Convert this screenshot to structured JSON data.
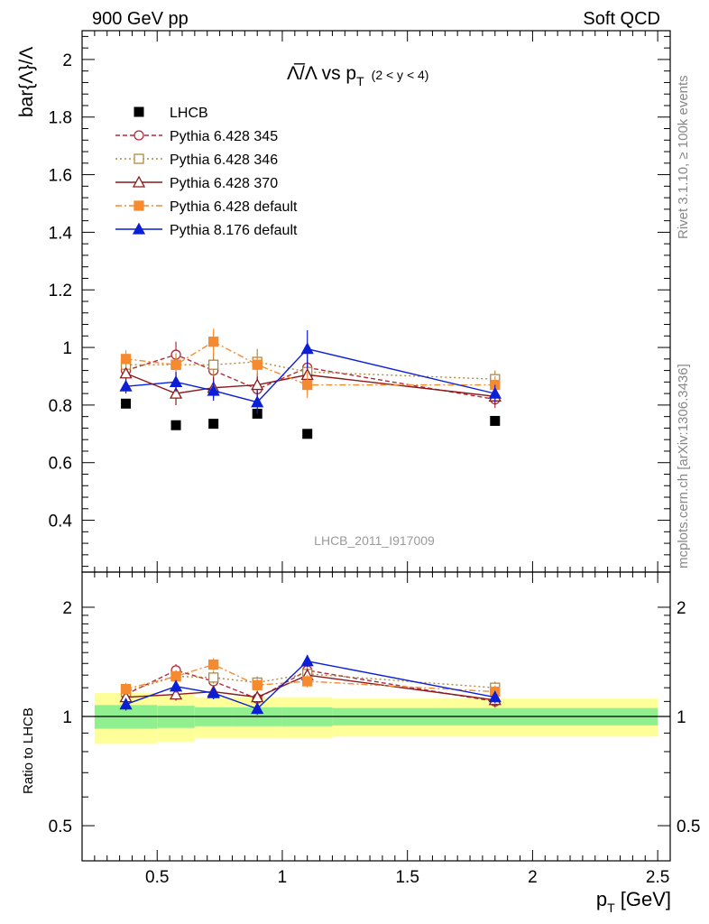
{
  "header": {
    "left": "900 GeV pp",
    "right": "Soft QCD"
  },
  "side_labels": {
    "rivet": "Rivet 3.1.10, ≥ 100k events",
    "mcplots": "mcplots.cern.ch [arXiv:1306.3436]"
  },
  "watermark": "LHCB_2011_I917009",
  "colors": {
    "lhcb": "#000000",
    "p345": "#b22a3a",
    "p346": "#b08a3c",
    "p370": "#8b1a1a",
    "pdef": "#f58a2e",
    "p8": "#0a1fd6",
    "band_inner": "#90f090",
    "band_outer": "#ffff99"
  },
  "chart_data": [
    {
      "type": "scatter",
      "title": {
        "main": "Λ̅/Λ vs p",
        "sub": "T",
        "range": "(2 < y < 4)"
      },
      "xlabel": {
        "main": "p",
        "sub": "T",
        "unit": " [GeV]"
      },
      "ylabel": "bar{Λ}/Λ",
      "xlim": [
        0.2,
        2.55
      ],
      "ylim": [
        0.22,
        2.1
      ],
      "yticks": [
        "0.4",
        "0.6",
        "0.8",
        "1",
        "1.2",
        "1.4",
        "1.6",
        "1.8",
        "2"
      ],
      "xticks": [
        "0.5",
        "1",
        "1.5",
        "2",
        "2.5"
      ],
      "x": [
        0.375,
        0.575,
        0.725,
        0.9,
        1.1,
        1.85
      ],
      "series": [
        {
          "name": "LHCB",
          "style": "data",
          "values": [
            0.805,
            0.73,
            0.735,
            0.77,
            0.7,
            0.745
          ]
        },
        {
          "name": "Pythia 6.428 345",
          "style": "p345",
          "values": [
            0.92,
            0.975,
            0.92,
            0.855,
            0.93,
            0.82
          ],
          "errors": [
            0.03,
            0.045,
            0.04,
            0.04,
            0.055,
            0.03
          ]
        },
        {
          "name": "Pythia 6.428 346",
          "style": "p346",
          "values": [
            0.94,
            0.94,
            0.94,
            0.95,
            0.915,
            0.89
          ],
          "errors": [
            0.03,
            0.04,
            0.04,
            0.045,
            0.05,
            0.03
          ]
        },
        {
          "name": "Pythia 6.428 370",
          "style": "p370",
          "values": [
            0.91,
            0.84,
            0.86,
            0.87,
            0.905,
            0.83
          ],
          "errors": [
            0.03,
            0.04,
            0.035,
            0.04,
            0.05,
            0.03
          ]
        },
        {
          "name": "Pythia 6.428 default",
          "style": "pdef",
          "values": [
            0.96,
            0.94,
            1.02,
            0.94,
            0.87,
            0.87
          ],
          "errors": [
            0.03,
            0.04,
            0.045,
            0.04,
            0.045,
            0.03
          ]
        },
        {
          "name": "Pythia 8.176 default",
          "style": "p8",
          "values": [
            0.865,
            0.88,
            0.85,
            0.81,
            0.995,
            0.84
          ],
          "errors": [
            0.025,
            0.035,
            0.035,
            0.04,
            0.065,
            0.03
          ]
        }
      ]
    },
    {
      "type": "ratio",
      "ylabel": "Ratio to LHCB",
      "yscale": "log",
      "ylim": [
        0.4,
        2.5
      ],
      "yticks": [
        "0.5",
        "1",
        "2"
      ],
      "xticks": [
        "0.5",
        "1",
        "1.5",
        "2",
        "2.5"
      ],
      "band_bins": [
        0.25,
        0.5,
        0.65,
        0.8,
        1.0,
        1.2,
        2.5
      ],
      "band_inner": [
        0.075,
        0.07,
        0.06,
        0.06,
        0.06,
        0.055
      ],
      "band_outer": [
        0.16,
        0.15,
        0.13,
        0.13,
        0.13,
        0.12
      ],
      "series": [
        {
          "name": "Pythia 6.428 345",
          "style": "p345",
          "values": [
            1.15,
            1.34,
            1.25,
            1.12,
            1.34,
            1.1
          ]
        },
        {
          "name": "Pythia 6.428 346",
          "style": "p346",
          "values": [
            1.17,
            1.29,
            1.28,
            1.24,
            1.31,
            1.2
          ]
        },
        {
          "name": "Pythia 6.428 370",
          "style": "p370",
          "values": [
            1.13,
            1.15,
            1.17,
            1.13,
            1.3,
            1.11
          ]
        },
        {
          "name": "Pythia 6.428 default",
          "style": "pdef",
          "values": [
            1.19,
            1.29,
            1.39,
            1.22,
            1.25,
            1.17
          ]
        },
        {
          "name": "Pythia 8.176 default",
          "style": "p8",
          "values": [
            1.08,
            1.21,
            1.16,
            1.05,
            1.42,
            1.13
          ]
        }
      ]
    }
  ]
}
